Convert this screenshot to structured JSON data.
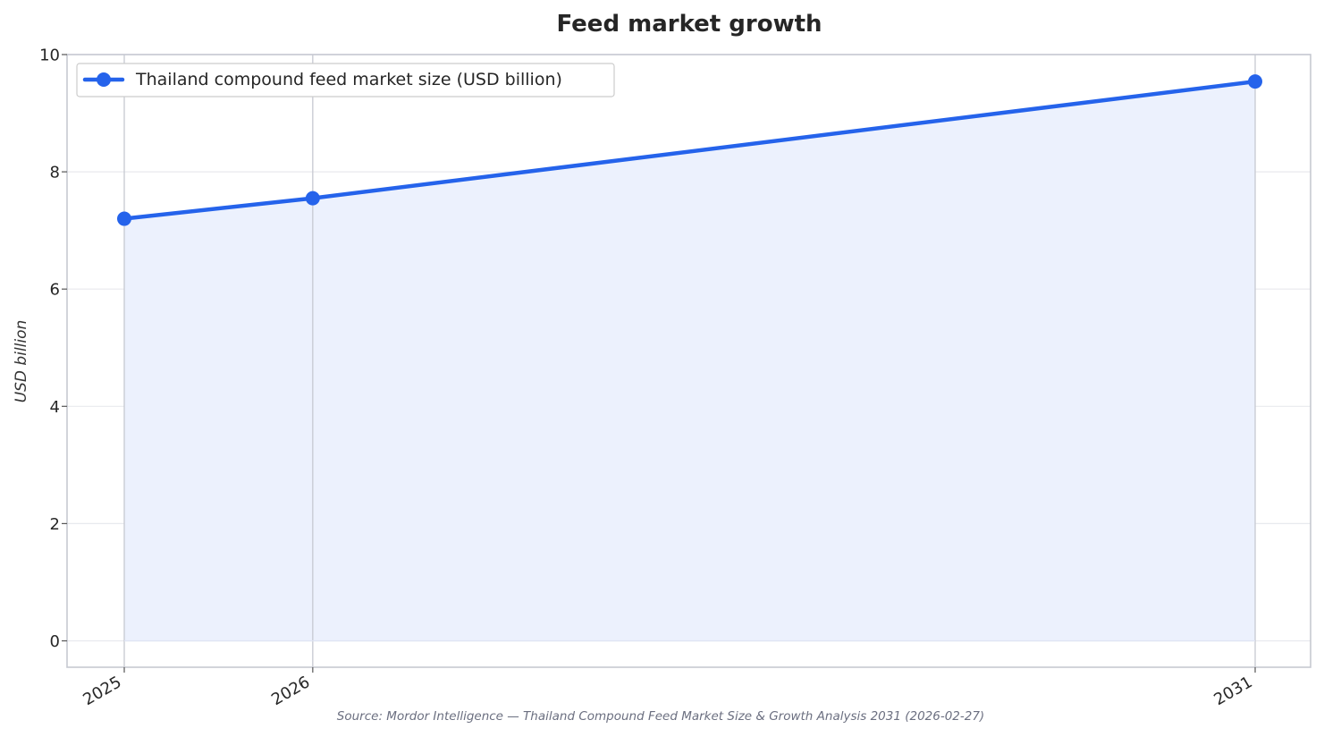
{
  "chart_data": {
    "type": "area",
    "title": "Feed market growth",
    "xlabel": "",
    "ylabel": "USD billion",
    "categories": [
      "2025",
      "2026",
      "2031"
    ],
    "x": [
      2025,
      2026,
      2031
    ],
    "ylim": [
      -0.45,
      10
    ],
    "yticks": [
      0,
      2,
      4,
      6,
      8,
      10
    ],
    "grid": true,
    "legend_position": "top-left",
    "series": [
      {
        "name": "Thailand compound feed market size (USD billion)",
        "values": [
          7.2,
          7.55,
          9.54
        ],
        "color": "#2563eb",
        "fill_color": "#ecf1fd"
      }
    ],
    "source": "Source: Mordor Intelligence — Thailand Compound Feed Market Size & Growth Analysis 2031 (2026-02-27)"
  }
}
